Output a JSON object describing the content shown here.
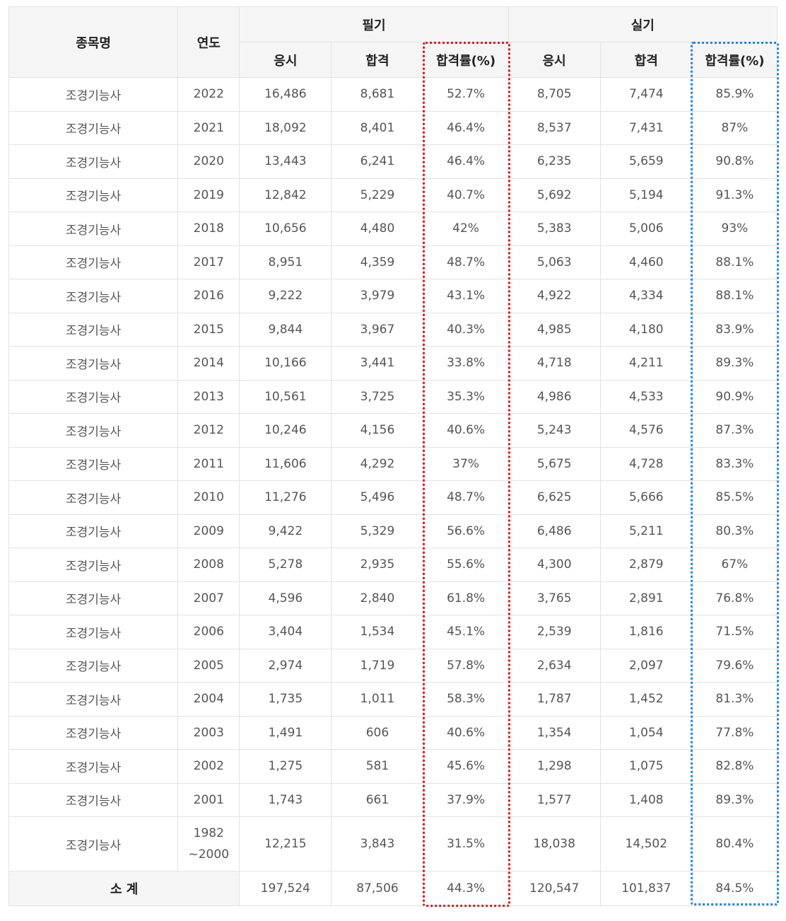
{
  "header": {
    "item_name": "종목명",
    "year": "연도",
    "written": "필기",
    "practical": "실기",
    "sub": {
      "applicants": "응시",
      "passed": "합격",
      "pass_rate": "합격률(%)"
    }
  },
  "rows": [
    {
      "name": "조경기능사",
      "year": "2022",
      "w_app": "16,486",
      "w_pass": "8,681",
      "w_rate": "52.7%",
      "p_app": "8,705",
      "p_pass": "7,474",
      "p_rate": "85.9%"
    },
    {
      "name": "조경기능사",
      "year": "2021",
      "w_app": "18,092",
      "w_pass": "8,401",
      "w_rate": "46.4%",
      "p_app": "8,537",
      "p_pass": "7,431",
      "p_rate": "87%"
    },
    {
      "name": "조경기능사",
      "year": "2020",
      "w_app": "13,443",
      "w_pass": "6,241",
      "w_rate": "46.4%",
      "p_app": "6,235",
      "p_pass": "5,659",
      "p_rate": "90.8%"
    },
    {
      "name": "조경기능사",
      "year": "2019",
      "w_app": "12,842",
      "w_pass": "5,229",
      "w_rate": "40.7%",
      "p_app": "5,692",
      "p_pass": "5,194",
      "p_rate": "91.3%"
    },
    {
      "name": "조경기능사",
      "year": "2018",
      "w_app": "10,656",
      "w_pass": "4,480",
      "w_rate": "42%",
      "p_app": "5,383",
      "p_pass": "5,006",
      "p_rate": "93%"
    },
    {
      "name": "조경기능사",
      "year": "2017",
      "w_app": "8,951",
      "w_pass": "4,359",
      "w_rate": "48.7%",
      "p_app": "5,063",
      "p_pass": "4,460",
      "p_rate": "88.1%"
    },
    {
      "name": "조경기능사",
      "year": "2016",
      "w_app": "9,222",
      "w_pass": "3,979",
      "w_rate": "43.1%",
      "p_app": "4,922",
      "p_pass": "4,334",
      "p_rate": "88.1%"
    },
    {
      "name": "조경기능사",
      "year": "2015",
      "w_app": "9,844",
      "w_pass": "3,967",
      "w_rate": "40.3%",
      "p_app": "4,985",
      "p_pass": "4,180",
      "p_rate": "83.9%"
    },
    {
      "name": "조경기능사",
      "year": "2014",
      "w_app": "10,166",
      "w_pass": "3,441",
      "w_rate": "33.8%",
      "p_app": "4,718",
      "p_pass": "4,211",
      "p_rate": "89.3%"
    },
    {
      "name": "조경기능사",
      "year": "2013",
      "w_app": "10,561",
      "w_pass": "3,725",
      "w_rate": "35.3%",
      "p_app": "4,986",
      "p_pass": "4,533",
      "p_rate": "90.9%"
    },
    {
      "name": "조경기능사",
      "year": "2012",
      "w_app": "10,246",
      "w_pass": "4,156",
      "w_rate": "40.6%",
      "p_app": "5,243",
      "p_pass": "4,576",
      "p_rate": "87.3%"
    },
    {
      "name": "조경기능사",
      "year": "2011",
      "w_app": "11,606",
      "w_pass": "4,292",
      "w_rate": "37%",
      "p_app": "5,675",
      "p_pass": "4,728",
      "p_rate": "83.3%"
    },
    {
      "name": "조경기능사",
      "year": "2010",
      "w_app": "11,276",
      "w_pass": "5,496",
      "w_rate": "48.7%",
      "p_app": "6,625",
      "p_pass": "5,666",
      "p_rate": "85.5%"
    },
    {
      "name": "조경기능사",
      "year": "2009",
      "w_app": "9,422",
      "w_pass": "5,329",
      "w_rate": "56.6%",
      "p_app": "6,486",
      "p_pass": "5,211",
      "p_rate": "80.3%"
    },
    {
      "name": "조경기능사",
      "year": "2008",
      "w_app": "5,278",
      "w_pass": "2,935",
      "w_rate": "55.6%",
      "p_app": "4,300",
      "p_pass": "2,879",
      "p_rate": "67%"
    },
    {
      "name": "조경기능사",
      "year": "2007",
      "w_app": "4,596",
      "w_pass": "2,840",
      "w_rate": "61.8%",
      "p_app": "3,765",
      "p_pass": "2,891",
      "p_rate": "76.8%"
    },
    {
      "name": "조경기능사",
      "year": "2006",
      "w_app": "3,404",
      "w_pass": "1,534",
      "w_rate": "45.1%",
      "p_app": "2,539",
      "p_pass": "1,816",
      "p_rate": "71.5%"
    },
    {
      "name": "조경기능사",
      "year": "2005",
      "w_app": "2,974",
      "w_pass": "1,719",
      "w_rate": "57.8%",
      "p_app": "2,634",
      "p_pass": "2,097",
      "p_rate": "79.6%"
    },
    {
      "name": "조경기능사",
      "year": "2004",
      "w_app": "1,735",
      "w_pass": "1,011",
      "w_rate": "58.3%",
      "p_app": "1,787",
      "p_pass": "1,452",
      "p_rate": "81.3%"
    },
    {
      "name": "조경기능사",
      "year": "2003",
      "w_app": "1,491",
      "w_pass": "606",
      "w_rate": "40.6%",
      "p_app": "1,354",
      "p_pass": "1,054",
      "p_rate": "77.8%"
    },
    {
      "name": "조경기능사",
      "year": "2002",
      "w_app": "1,275",
      "w_pass": "581",
      "w_rate": "45.6%",
      "p_app": "1,298",
      "p_pass": "1,075",
      "p_rate": "82.8%"
    },
    {
      "name": "조경기능사",
      "year": "2001",
      "w_app": "1,743",
      "w_pass": "661",
      "w_rate": "37.9%",
      "p_app": "1,577",
      "p_pass": "1,408",
      "p_rate": "89.3%"
    }
  ],
  "last_row": {
    "name": "조경기능사",
    "year_line1": "1982",
    "year_line2": "~2000",
    "w_app": "12,215",
    "w_pass": "3,843",
    "w_rate": "31.5%",
    "p_app": "18,038",
    "p_pass": "14,502",
    "p_rate": "80.4%"
  },
  "total": {
    "label": "소 계",
    "w_app": "197,524",
    "w_pass": "87,506",
    "w_rate": "44.3%",
    "p_app": "120,547",
    "p_pass": "101,837",
    "p_rate": "84.5%"
  },
  "colors": {
    "written_highlight": "#e8141b",
    "practical_highlight": "#1f87e3"
  }
}
